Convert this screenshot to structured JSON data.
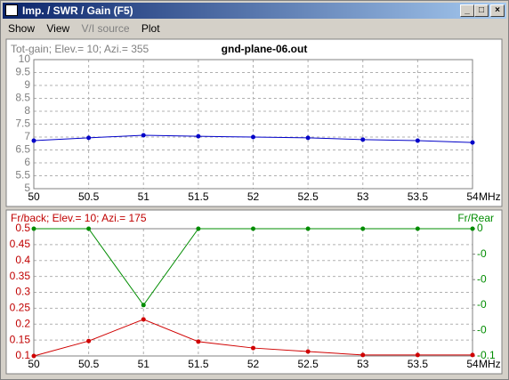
{
  "window": {
    "title": "Imp. / SWR / Gain  (F5)",
    "menu": [
      "Show",
      "View",
      "V/I source",
      "Plot"
    ]
  },
  "chart_data": [
    {
      "type": "line",
      "title": "gnd-plane-06.out",
      "y_label": "Tot-gain; Elev.= 10; Azi.= 355",
      "x_unit": "MHz",
      "x": [
        50,
        50.5,
        51,
        51.5,
        52,
        52.5,
        53,
        53.5,
        54
      ],
      "series": [
        {
          "color": "#0000c8",
          "values": [
            6.86,
            6.97,
            7.07,
            7.03,
            7.0,
            6.97,
            6.9,
            6.86,
            6.79
          ]
        }
      ],
      "xlim": [
        50,
        54
      ],
      "xticks": [
        50,
        50.5,
        51,
        51.5,
        52,
        52.5,
        53,
        53.5,
        54
      ],
      "ylim": [
        5,
        10
      ],
      "yticks": [
        5,
        5.5,
        6,
        6.5,
        7,
        7.5,
        8,
        8.5,
        9,
        9.5,
        10
      ],
      "grid": true
    },
    {
      "type": "line",
      "y_label": "Fr/back; Elev.= 10; Azi.= 175",
      "y2_label": "Fr/Rear",
      "x_unit": "MHz",
      "x": [
        50,
        50.5,
        51,
        51.5,
        52,
        52.5,
        53,
        53.5,
        54
      ],
      "series": [
        {
          "color": "#d00000",
          "values": [
            0.1,
            0.147,
            0.215,
            0.145,
            0.125,
            0.114,
            0.103,
            0.103,
            0.103
          ]
        },
        {
          "color": "#008c00",
          "axis": "y2",
          "values": [
            0,
            0,
            -0.06,
            0,
            0,
            0,
            0,
            0,
            0
          ]
        }
      ],
      "xlim": [
        50,
        54
      ],
      "xticks": [
        50,
        50.5,
        51,
        51.5,
        52,
        52.5,
        53,
        53.5,
        54
      ],
      "ylim": [
        0.1,
        0.5
      ],
      "yticks": [
        0.1,
        0.15,
        0.2,
        0.25,
        0.3,
        0.35,
        0.4,
        0.45,
        0.5
      ],
      "y2lim": [
        -0.1,
        0
      ],
      "y2ticks": [
        -0.1,
        {
          "value": -0.08,
          "label": "-0"
        },
        {
          "value": -0.06,
          "label": "-0"
        },
        {
          "value": -0.04,
          "label": "-0"
        },
        {
          "value": -0.02,
          "label": "-0"
        },
        0
      ],
      "grid": true
    }
  ]
}
